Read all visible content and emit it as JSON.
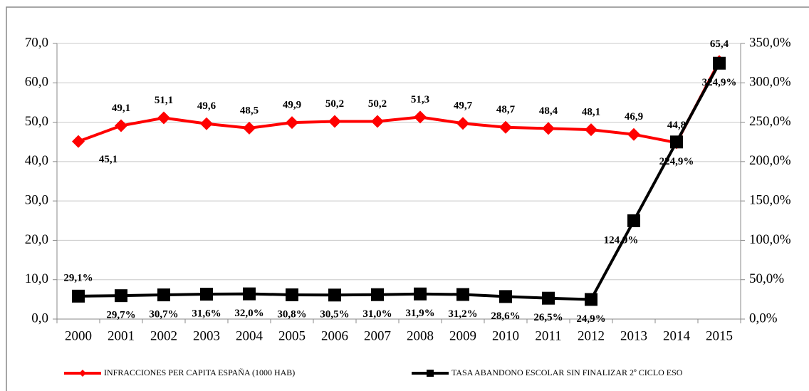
{
  "chart_data": {
    "type": "line",
    "categories": [
      "2000",
      "2001",
      "2002",
      "2003",
      "2004",
      "2005",
      "2006",
      "2007",
      "2008",
      "2009",
      "2010",
      "2011",
      "2012",
      "2013",
      "2014",
      "2015"
    ],
    "series": [
      {
        "name": "INFRACCIONES PER CAPITA ESPAÑA (1000 HAB)",
        "color": "#ff0000",
        "marker": "diamond",
        "values": [
          45.1,
          49.1,
          51.1,
          49.6,
          48.5,
          49.9,
          50.2,
          50.2,
          51.3,
          49.7,
          48.7,
          48.4,
          48.1,
          46.9,
          44.8,
          65.4
        ],
        "value_labels": [
          "45,1",
          "49,1",
          "51,1",
          "49,6",
          "48,5",
          "49,9",
          "50,2",
          "50,2",
          "51,3",
          "49,7",
          "48,7",
          "48,4",
          "48,1",
          "46,9",
          "44,8",
          "65,4"
        ]
      },
      {
        "name": "TASA ABANDONO ESCOLAR SIN FINALIZAR 2º CICLO ESO",
        "color": "#000000",
        "marker": "square",
        "axis": "y2",
        "values": [
          29.1,
          29.7,
          30.7,
          31.6,
          32.0,
          30.8,
          30.5,
          31.0,
          31.9,
          31.2,
          28.6,
          26.5,
          24.9,
          124.9,
          224.9,
          324.9
        ],
        "value_labels": [
          "29,1%",
          "29,7%",
          "30,7%",
          "31,6%",
          "32,0%",
          "30,8%",
          "30,5%",
          "31,0%",
          "31,9%",
          "31,2%",
          "28,6%",
          "26,5%",
          "24,9%",
          "124,9%",
          "224,9%",
          "324,9%"
        ]
      }
    ],
    "ylim": [
      0,
      70
    ],
    "yticks": [
      {
        "value": 0,
        "label": "0,0"
      },
      {
        "value": 10,
        "label": "10,0"
      },
      {
        "value": 20,
        "label": "20,0"
      },
      {
        "value": 30,
        "label": "30,0"
      },
      {
        "value": 40,
        "label": "40,0"
      },
      {
        "value": 50,
        "label": "50,0"
      },
      {
        "value": 60,
        "label": "60,0"
      },
      {
        "value": 70,
        "label": "70,0"
      }
    ],
    "y2lim": [
      0,
      350
    ],
    "y2ticks": [
      {
        "value": 0,
        "label": "0,0%"
      },
      {
        "value": 50,
        "label": "50,0%"
      },
      {
        "value": 100,
        "label": "100,0%"
      },
      {
        "value": 150,
        "label": "150,0%"
      },
      {
        "value": 200,
        "label": "200,0%"
      },
      {
        "value": 250,
        "label": "250,0%"
      },
      {
        "value": 300,
        "label": "300,0%"
      },
      {
        "value": 350,
        "label": "350,0%"
      }
    ],
    "grid": true,
    "legend": "bottom"
  }
}
